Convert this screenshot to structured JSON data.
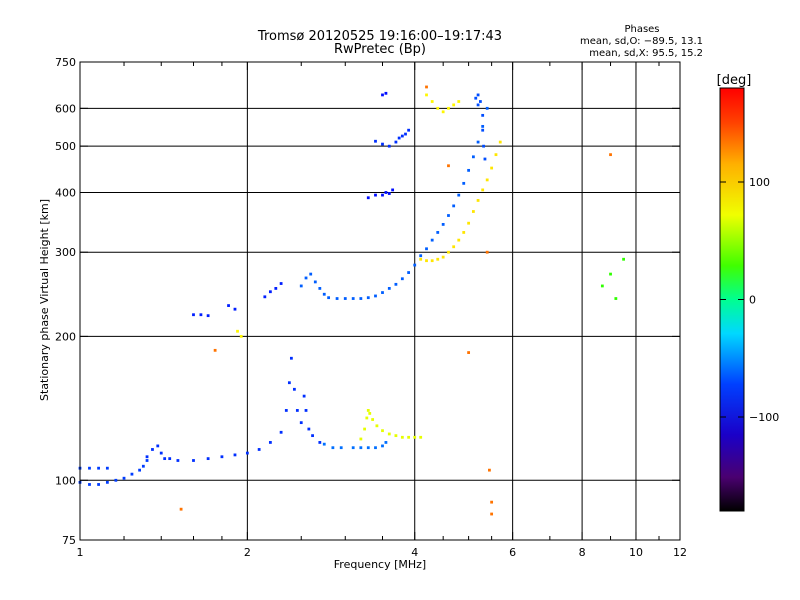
{
  "chart_data": {
    "type": "scatter",
    "title": "Tromsø 20120525 19:16:00–19:17:43",
    "subtitle": "RwPretec (Bp)",
    "xlabel": "Frequency [MHz]",
    "ylabel": "Stationary phase Virtual Height [km]",
    "x_scale": "log",
    "y_scale": "log",
    "xlim": [
      1,
      12
    ],
    "ylim": [
      75,
      750
    ],
    "x_ticks": [
      1,
      2,
      4,
      6,
      8,
      10,
      12
    ],
    "x_tick_labels": [
      "1",
      "2",
      "4",
      "6",
      "8",
      "10",
      "12"
    ],
    "x_grid": [
      2,
      4,
      6,
      8,
      10
    ],
    "x_minor_ticks": [
      1.2,
      1.4,
      1.6,
      1.8,
      2.5,
      3,
      3.5,
      4.5,
      5,
      5.5,
      7,
      9,
      11
    ],
    "y_ticks": [
      75,
      100,
      200,
      300,
      400,
      500,
      600,
      750
    ],
    "y_tick_labels": [
      "75",
      "100",
      "200",
      "300",
      "400",
      "500",
      "600",
      "750"
    ],
    "y_grid": [
      100,
      200,
      300,
      400,
      500,
      600
    ],
    "grid": true,
    "phases": {
      "heading": "Phases",
      "line1": "mean, sd,O: −89.5, 13.1",
      "line2": "mean, sd,X:  95.5, 15.2"
    },
    "colorbar": {
      "unit": "[deg]",
      "min": -180,
      "max": 180,
      "ticks": [
        100,
        0,
        -100
      ],
      "tick_labels": [
        "100",
        "0",
        "−100"
      ],
      "placement": "right"
    },
    "series": [
      {
        "phase": -110,
        "points": [
          [
            1.0,
            99
          ],
          [
            1.04,
            98
          ],
          [
            1.08,
            98
          ],
          [
            1.12,
            99
          ],
          [
            1.16,
            100
          ],
          [
            1.2,
            101
          ],
          [
            1.24,
            103
          ],
          [
            1.28,
            105
          ],
          [
            1.3,
            107
          ],
          [
            1.32,
            110
          ]
        ]
      },
      {
        "phase": -110,
        "points": [
          [
            1.0,
            106
          ],
          [
            1.04,
            106
          ],
          [
            1.08,
            106
          ],
          [
            1.12,
            106
          ]
        ]
      },
      {
        "phase": -115,
        "points": [
          [
            1.32,
            112
          ],
          [
            1.35,
            116
          ],
          [
            1.38,
            118
          ],
          [
            1.4,
            114
          ],
          [
            1.42,
            111
          ],
          [
            1.45,
            111
          ],
          [
            1.5,
            110
          ],
          [
            1.6,
            110
          ],
          [
            1.7,
            111
          ],
          [
            1.8,
            112
          ],
          [
            1.9,
            113
          ],
          [
            2.0,
            114
          ],
          [
            2.1,
            116
          ],
          [
            2.2,
            120
          ],
          [
            2.3,
            126
          ],
          [
            2.35,
            140
          ],
          [
            2.38,
            160
          ],
          [
            2.4,
            180
          ],
          [
            2.43,
            155
          ],
          [
            2.46,
            140
          ],
          [
            2.5,
            132
          ],
          [
            2.53,
            150
          ],
          [
            2.55,
            140
          ],
          [
            2.58,
            128
          ],
          [
            2.62,
            124
          ],
          [
            2.7,
            120
          ]
        ]
      },
      {
        "phase": -95,
        "points": [
          [
            2.75,
            119
          ],
          [
            2.85,
            117
          ],
          [
            2.95,
            117
          ],
          [
            3.1,
            117
          ],
          [
            3.2,
            117
          ],
          [
            3.3,
            117
          ],
          [
            3.4,
            117
          ],
          [
            3.5,
            118
          ],
          [
            3.55,
            120
          ]
        ]
      },
      {
        "phase": 95,
        "points": [
          [
            3.2,
            122
          ],
          [
            3.25,
            128
          ],
          [
            3.28,
            135
          ],
          [
            3.3,
            140
          ],
          [
            3.32,
            138
          ],
          [
            3.36,
            134
          ],
          [
            3.42,
            130
          ],
          [
            3.5,
            127
          ],
          [
            3.6,
            125
          ],
          [
            3.7,
            124
          ],
          [
            3.8,
            123
          ],
          [
            3.9,
            123
          ],
          [
            4.0,
            123
          ],
          [
            4.1,
            123
          ]
        ]
      },
      {
        "phase": -100,
        "points": [
          [
            2.5,
            255
          ],
          [
            2.55,
            265
          ],
          [
            2.6,
            270
          ],
          [
            2.65,
            260
          ],
          [
            2.7,
            252
          ],
          [
            2.75,
            245
          ],
          [
            2.8,
            241
          ],
          [
            2.9,
            240
          ],
          [
            3.0,
            240
          ],
          [
            3.1,
            240
          ],
          [
            3.2,
            240
          ],
          [
            3.3,
            241
          ],
          [
            3.4,
            243
          ],
          [
            3.5,
            247
          ],
          [
            3.6,
            252
          ],
          [
            3.7,
            257
          ],
          [
            3.8,
            264
          ],
          [
            3.9,
            272
          ],
          [
            4.0,
            282
          ],
          [
            4.1,
            295
          ],
          [
            4.2,
            305
          ],
          [
            4.3,
            318
          ],
          [
            4.4,
            330
          ],
          [
            4.5,
            343
          ],
          [
            4.6,
            358
          ],
          [
            4.7,
            375
          ],
          [
            4.8,
            395
          ],
          [
            4.9,
            418
          ],
          [
            5.0,
            445
          ],
          [
            5.1,
            475
          ],
          [
            5.2,
            510
          ],
          [
            5.3,
            550
          ],
          [
            5.4,
            600
          ]
        ]
      },
      {
        "phase": -120,
        "points": [
          [
            1.6,
            222
          ],
          [
            1.65,
            222
          ],
          [
            1.7,
            221
          ],
          [
            1.85,
            232
          ],
          [
            1.9,
            228
          ],
          [
            2.15,
            242
          ],
          [
            2.2,
            248
          ],
          [
            2.25,
            252
          ],
          [
            2.3,
            258
          ]
        ]
      },
      {
        "phase": -115,
        "points": [
          [
            3.6,
            500
          ],
          [
            3.7,
            510
          ],
          [
            3.75,
            520
          ],
          [
            3.8,
            525
          ],
          [
            3.85,
            530
          ],
          [
            3.9,
            540
          ],
          [
            3.5,
            505
          ],
          [
            3.4,
            512
          ]
        ]
      },
      {
        "phase": -125,
        "points": [
          [
            3.3,
            390
          ],
          [
            3.4,
            395
          ],
          [
            3.5,
            395
          ],
          [
            3.55,
            400
          ],
          [
            3.6,
            398
          ],
          [
            3.65,
            405
          ],
          [
            3.5,
            640
          ],
          [
            3.55,
            645
          ]
        ]
      },
      {
        "phase": -105,
        "points": [
          [
            5.2,
            640
          ],
          [
            5.25,
            620
          ],
          [
            5.3,
            580
          ],
          [
            5.3,
            540
          ],
          [
            5.32,
            500
          ],
          [
            5.35,
            470
          ],
          [
            5.2,
            610
          ],
          [
            5.15,
            630
          ]
        ]
      },
      {
        "phase": 110,
        "points": [
          [
            4.1,
            290
          ],
          [
            4.2,
            288
          ],
          [
            4.3,
            288
          ],
          [
            4.4,
            290
          ],
          [
            4.5,
            293
          ],
          [
            4.6,
            300
          ],
          [
            4.7,
            308
          ],
          [
            4.8,
            318
          ],
          [
            4.9,
            330
          ],
          [
            5.0,
            345
          ],
          [
            5.1,
            365
          ],
          [
            5.2,
            385
          ],
          [
            5.3,
            405
          ],
          [
            5.4,
            425
          ],
          [
            5.5,
            450
          ],
          [
            5.6,
            480
          ],
          [
            5.7,
            510
          ]
        ]
      },
      {
        "phase": 105,
        "points": [
          [
            4.2,
            640
          ],
          [
            4.3,
            620
          ],
          [
            4.4,
            600
          ],
          [
            4.5,
            590
          ],
          [
            4.6,
            600
          ],
          [
            4.7,
            610
          ],
          [
            4.8,
            620
          ],
          [
            1.92,
            205
          ],
          [
            1.95,
            200
          ]
        ]
      },
      {
        "phase": 145,
        "points": [
          [
            4.2,
            665
          ],
          [
            4.6,
            455
          ],
          [
            5.0,
            185
          ],
          [
            5.4,
            300
          ],
          [
            5.5,
            90
          ],
          [
            5.45,
            105
          ],
          [
            5.5,
            85
          ],
          [
            9.0,
            480
          ],
          [
            1.75,
            187
          ],
          [
            1.52,
            87
          ]
        ]
      },
      {
        "phase": 40,
        "points": [
          [
            8.7,
            255
          ],
          [
            9.2,
            240
          ],
          [
            9.0,
            270
          ],
          [
            9.5,
            290
          ]
        ]
      }
    ]
  }
}
